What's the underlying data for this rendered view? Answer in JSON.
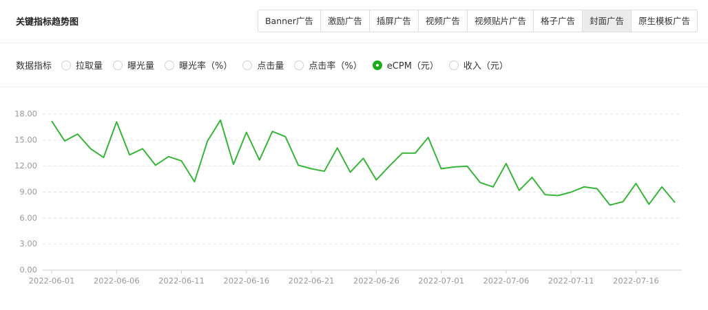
{
  "header": {
    "title": "关键指标趋势图",
    "tabs": [
      "Banner广告",
      "激励广告",
      "插屏广告",
      "视频广告",
      "视频贴片广告",
      "格子广告",
      "封面广告",
      "原生模板广告"
    ],
    "selected": 6
  },
  "metrics": {
    "label": "数据指标",
    "options": [
      "拉取量",
      "曝光量",
      "曝光率（%）",
      "点击量",
      "点击率（%）",
      "eCPM（元）",
      "收入（元）"
    ],
    "selected": 5
  },
  "chart_data": {
    "type": "line",
    "color": "#35b535",
    "categories": [
      "2022-06-01",
      null,
      null,
      null,
      null,
      "2022-06-06",
      null,
      null,
      null,
      null,
      "2022-06-11",
      null,
      null,
      null,
      null,
      "2022-06-16",
      null,
      null,
      null,
      null,
      "2022-06-21",
      null,
      null,
      null,
      null,
      "2022-06-26",
      null,
      null,
      null,
      null,
      "2022-07-01",
      null,
      null,
      null,
      null,
      "2022-07-06",
      null,
      null,
      null,
      null,
      "2022-07-11",
      null,
      null,
      null,
      null,
      "2022-07-16",
      null,
      null,
      null
    ],
    "values": [
      17.2,
      14.9,
      15.7,
      14.0,
      13.0,
      17.1,
      13.3,
      14.0,
      12.1,
      13.1,
      12.6,
      10.2,
      14.9,
      17.3,
      12.2,
      15.9,
      12.7,
      16.0,
      15.4,
      12.1,
      11.7,
      11.4,
      14.1,
      11.3,
      12.9,
      10.4,
      12.0,
      13.5,
      13.5,
      15.3,
      11.7,
      11.9,
      12.0,
      10.1,
      9.6,
      12.3,
      9.2,
      10.7,
      8.7,
      8.6,
      9.0,
      9.6,
      9.4,
      7.5,
      7.9,
      10.0,
      7.6,
      9.6,
      7.8
    ],
    "ylim": [
      0,
      18
    ],
    "yticks": [
      {
        "value": 0,
        "label": "0.00"
      },
      {
        "value": 3,
        "label": "3.00"
      },
      {
        "value": 6,
        "label": "6.00"
      },
      {
        "value": 9,
        "label": "9.00"
      },
      {
        "value": 12,
        "label": "12.00"
      },
      {
        "value": 15,
        "label": "15.00"
      },
      {
        "value": 18,
        "label": "18.00"
      }
    ],
    "grid": true
  }
}
